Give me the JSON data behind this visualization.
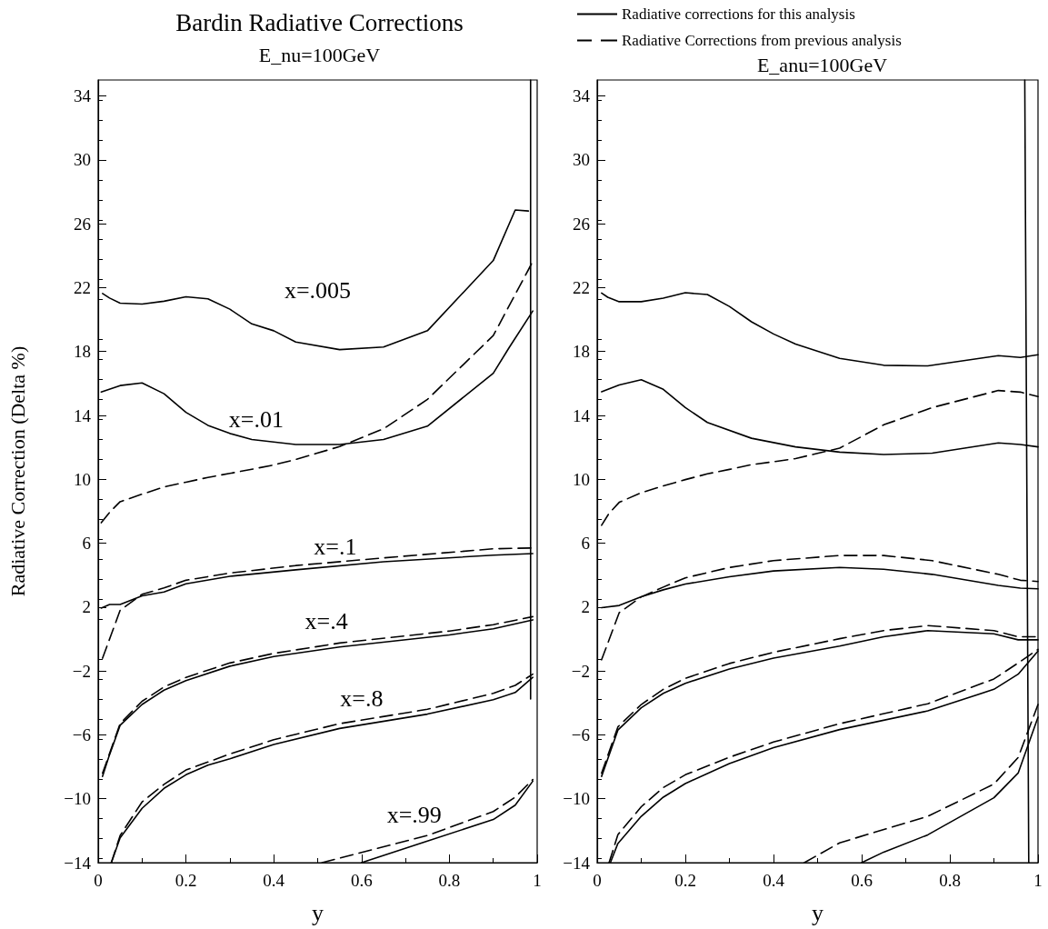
{
  "chart_data": [
    {
      "type": "line",
      "title": "Bardin Radiative Corrections",
      "subtitle": "E_nu=100GeV",
      "xlabel": "y",
      "ylabel": "Radiative Correction (Delta %)",
      "xlim": [
        0,
        1
      ],
      "xticks": [
        0,
        0.2,
        0.4,
        0.6,
        0.8,
        1
      ],
      "ylim": [
        -14,
        35
      ],
      "yticks": [
        -14,
        -10,
        -6,
        -2,
        2,
        6,
        10,
        14,
        18,
        22,
        26,
        30,
        34
      ],
      "grid": false,
      "legend": false,
      "marker": "none",
      "series": [
        {
          "color": "#000000",
          "line_style": "solid",
          "x": [
            0.01,
            0.026,
            0.05,
            0.1,
            0.15,
            0.2,
            0.25,
            0.3,
            0.35,
            0.4,
            0.45,
            0.55,
            0.65,
            0.75,
            0.9,
            0.95,
            0.98
          ],
          "values": [
            21.63,
            21.35,
            21.03,
            20.97,
            21.15,
            21.43,
            21.3,
            20.65,
            19.73,
            19.3,
            18.6,
            18.12,
            18.28,
            19.3,
            23.7,
            26.86,
            26.8
          ]
        },
        {
          "color": "#000000",
          "line_style": "solid",
          "x": [
            0.007,
            0.05,
            0.1,
            0.15,
            0.2,
            0.25,
            0.3,
            0.35,
            0.45,
            0.55,
            0.65,
            0.75,
            0.9,
            0.936,
            0.99
          ],
          "values": [
            15.47,
            15.87,
            16.03,
            15.36,
            14.19,
            13.38,
            12.87,
            12.49,
            12.18,
            12.18,
            12.49,
            13.33,
            16.64,
            18.24,
            20.54
          ]
        },
        {
          "color": "#000000",
          "line_style": "dashed",
          "x": [
            0.007,
            0.026,
            0.05,
            0.1,
            0.15,
            0.2,
            0.25,
            0.3,
            0.35,
            0.4,
            0.45,
            0.55,
            0.65,
            0.75,
            0.9,
            0.98,
            0.99
          ],
          "values": [
            7.28,
            7.93,
            8.6,
            9.07,
            9.52,
            9.82,
            10.12,
            10.37,
            10.63,
            10.9,
            11.24,
            12.05,
            13.16,
            15.0,
            19.0,
            23.12,
            23.66
          ]
        },
        {
          "color": "#000000",
          "line_style": "solid",
          "x": [
            0.007,
            0.026,
            0.05,
            0.1,
            0.15,
            0.2,
            0.3,
            0.45,
            0.65,
            0.9,
            0.99
          ],
          "values": [
            1.94,
            2.16,
            2.16,
            2.7,
            2.95,
            3.46,
            3.93,
            4.33,
            4.84,
            5.25,
            5.35
          ]
        },
        {
          "color": "#000000",
          "line_style": "dashed",
          "x": [
            0.01,
            0.03,
            0.05,
            0.1,
            0.15,
            0.2,
            0.3,
            0.45,
            0.65,
            0.9,
            0.99
          ],
          "values": [
            -1.2,
            0.3,
            1.8,
            2.8,
            3.2,
            3.68,
            4.13,
            4.6,
            5.08,
            5.65,
            5.7
          ]
        },
        {
          "color": "#000000",
          "line_style": "solid",
          "x": [
            0.01,
            0.024,
            0.05,
            0.1,
            0.15,
            0.2,
            0.3,
            0.4,
            0.55,
            0.8,
            0.9,
            0.99
          ],
          "values": [
            -8.6,
            -7.4,
            -5.4,
            -4.1,
            -3.2,
            -2.6,
            -1.7,
            -1.1,
            -0.5,
            0.26,
            0.64,
            1.2
          ]
        },
        {
          "color": "#000000",
          "line_style": "dashed",
          "x": [
            0.01,
            0.05,
            0.1,
            0.15,
            0.2,
            0.3,
            0.4,
            0.55,
            0.8,
            0.9,
            0.99
          ],
          "values": [
            -8.4,
            -5.3,
            -3.9,
            -3.0,
            -2.4,
            -1.5,
            -0.9,
            -0.25,
            0.5,
            0.9,
            1.4
          ]
        },
        {
          "color": "#000000",
          "line_style": "solid",
          "x": [
            0.03,
            0.05,
            0.1,
            0.15,
            0.2,
            0.25,
            0.3,
            0.4,
            0.55,
            0.75,
            0.9,
            0.95,
            0.99
          ],
          "values": [
            -14,
            -12.45,
            -10.6,
            -9.35,
            -8.5,
            -7.9,
            -7.5,
            -6.6,
            -5.6,
            -4.7,
            -3.8,
            -3.35,
            -2.4
          ]
        },
        {
          "color": "#000000",
          "line_style": "dashed",
          "x": [
            0.03,
            0.05,
            0.1,
            0.15,
            0.2,
            0.3,
            0.4,
            0.55,
            0.75,
            0.9,
            0.95,
            0.99
          ],
          "values": [
            -14,
            -12.3,
            -10.2,
            -9.1,
            -8.2,
            -7.2,
            -6.3,
            -5.3,
            -4.4,
            -3.4,
            -2.9,
            -2.2
          ]
        },
        {
          "color": "#000000",
          "line_style": "solid",
          "x": [
            0.6,
            0.75,
            0.9,
            0.95,
            0.99
          ],
          "values": [
            -14,
            -12.65,
            -11.3,
            -10.4,
            -8.9
          ]
        },
        {
          "color": "#000000",
          "line_style": "dashed",
          "x": [
            0.51,
            0.75,
            0.9,
            0.95,
            0.99
          ],
          "values": [
            -14,
            -12.3,
            -10.8,
            -9.9,
            -8.8
          ]
        },
        {
          "color": "#000000",
          "line_style": "solid",
          "x": [
            0.985,
            0.985
          ],
          "values": [
            35,
            -3.75
          ]
        }
      ],
      "annotations": [
        "x=.005",
        "x=.01",
        "x=.1",
        "x=.4",
        "x=.8",
        "x=.99"
      ]
    },
    {
      "type": "line",
      "title": "E_anu=100GeV",
      "xlabel": "y",
      "xlim": [
        0,
        1
      ],
      "xticks": [
        0,
        0.2,
        0.4,
        0.6,
        0.8,
        1
      ],
      "ylim": [
        -14,
        35
      ],
      "yticks": [
        -14,
        -10,
        -6,
        -2,
        2,
        6,
        10,
        14,
        18,
        22,
        26,
        30,
        34
      ],
      "grid": false,
      "legend": "top",
      "marker": "none",
      "series": [
        {
          "name": "Radiative corrections for this analysis",
          "color": "#000000",
          "line_style": "solid",
          "x": [
            0.01,
            0.024,
            0.05,
            0.1,
            0.15,
            0.2,
            0.25,
            0.3,
            0.35,
            0.4,
            0.45,
            0.55,
            0.65,
            0.75,
            0.91,
            0.96,
            1.0
          ],
          "values": [
            21.66,
            21.4,
            21.12,
            21.12,
            21.34,
            21.68,
            21.57,
            20.82,
            19.86,
            19.1,
            18.47,
            17.57,
            17.14,
            17.1,
            17.74,
            17.63,
            17.8
          ]
        },
        {
          "color": "#000000",
          "line_style": "solid",
          "x": [
            0.01,
            0.05,
            0.1,
            0.15,
            0.2,
            0.25,
            0.35,
            0.45,
            0.55,
            0.65,
            0.76,
            0.91,
            0.96,
            1.0
          ],
          "values": [
            15.48,
            15.91,
            16.23,
            15.63,
            14.49,
            13.56,
            12.57,
            12.03,
            11.7,
            11.55,
            11.64,
            12.28,
            12.18,
            12.03
          ]
        },
        {
          "name": "Radiative Corrections from previous analysis",
          "color": "#000000",
          "line_style": "dashed",
          "x": [
            0.01,
            0.027,
            0.05,
            0.1,
            0.15,
            0.2,
            0.25,
            0.3,
            0.35,
            0.4,
            0.45,
            0.55,
            0.65,
            0.76,
            0.91,
            0.96,
            1.0
          ],
          "values": [
            7.12,
            7.87,
            8.56,
            9.16,
            9.59,
            9.98,
            10.34,
            10.62,
            10.92,
            11.1,
            11.3,
            11.95,
            13.41,
            14.49,
            15.56,
            15.46,
            15.18
          ]
        },
        {
          "color": "#000000",
          "line_style": "solid",
          "x": [
            0.01,
            0.05,
            0.1,
            0.15,
            0.2,
            0.3,
            0.4,
            0.55,
            0.65,
            0.76,
            0.91,
            0.96,
            1.0
          ],
          "values": [
            1.96,
            2.1,
            2.64,
            3.08,
            3.44,
            3.9,
            4.26,
            4.48,
            4.37,
            4.05,
            3.36,
            3.19,
            3.14
          ]
        },
        {
          "color": "#000000",
          "line_style": "dashed",
          "x": [
            0.01,
            0.05,
            0.1,
            0.15,
            0.2,
            0.3,
            0.4,
            0.55,
            0.65,
            0.76,
            0.91,
            0.96,
            1.0
          ],
          "values": [
            -1.3,
            1.65,
            2.64,
            3.25,
            3.83,
            4.48,
            4.91,
            5.23,
            5.23,
            4.91,
            4.05,
            3.68,
            3.6
          ]
        },
        {
          "color": "#000000",
          "line_style": "solid",
          "x": [
            0.01,
            0.047,
            0.1,
            0.15,
            0.2,
            0.3,
            0.4,
            0.55,
            0.65,
            0.75,
            0.9,
            0.955,
            1.0
          ],
          "values": [
            -8.6,
            -5.7,
            -4.3,
            -3.4,
            -2.77,
            -1.88,
            -1.2,
            -0.44,
            0.14,
            0.53,
            0.33,
            -0.05,
            -0.05
          ]
        },
        {
          "color": "#000000",
          "line_style": "dashed",
          "x": [
            0.01,
            0.047,
            0.1,
            0.15,
            0.2,
            0.3,
            0.4,
            0.55,
            0.65,
            0.75,
            0.9,
            0.955,
            1.0
          ],
          "values": [
            -8.4,
            -5.5,
            -4.1,
            -3.15,
            -2.46,
            -1.53,
            -0.83,
            0.02,
            0.53,
            0.84,
            0.53,
            0.14,
            0.14
          ]
        },
        {
          "color": "#000000",
          "line_style": "solid",
          "x": [
            0.03,
            0.047,
            0.1,
            0.15,
            0.2,
            0.3,
            0.4,
            0.55,
            0.75,
            0.9,
            0.955,
            1.0
          ],
          "values": [
            -14,
            -12.8,
            -11.1,
            -9.9,
            -9.05,
            -7.8,
            -6.8,
            -5.67,
            -4.5,
            -3.15,
            -2.2,
            -0.75
          ]
        },
        {
          "color": "#000000",
          "line_style": "dashed",
          "x": [
            0.027,
            0.047,
            0.1,
            0.15,
            0.2,
            0.3,
            0.4,
            0.55,
            0.75,
            0.9,
            0.955,
            1.0
          ],
          "values": [
            -14,
            -12.25,
            -10.5,
            -9.3,
            -8.5,
            -7.4,
            -6.45,
            -5.3,
            -4.05,
            -2.5,
            -1.5,
            -0.65
          ]
        },
        {
          "color": "#000000",
          "line_style": "solid",
          "x": [
            0.6,
            0.65,
            0.75,
            0.9,
            0.955,
            1.0
          ],
          "values": [
            -14,
            -13.34,
            -12.26,
            -9.94,
            -8.39,
            -4.9
          ]
        },
        {
          "color": "#000000",
          "line_style": "dashed",
          "x": [
            0.47,
            0.55,
            0.75,
            0.9,
            0.955,
            1.0
          ],
          "values": [
            -14,
            -12.76,
            -11.1,
            -9.08,
            -7.42,
            -4.1
          ]
        },
        {
          "color": "#000000",
          "line_style": "solid",
          "x": [
            0.97,
            0.979
          ],
          "values": [
            35,
            -14
          ]
        }
      ]
    }
  ]
}
